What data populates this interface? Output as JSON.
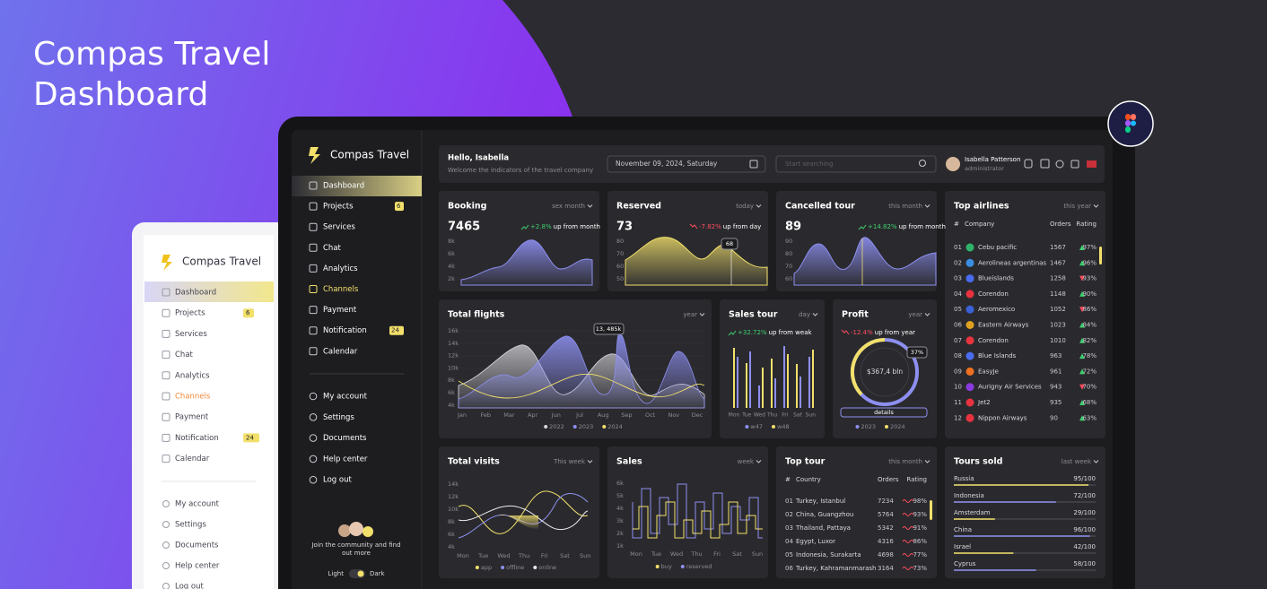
{
  "hero": {
    "title_lines": [
      "Compas Travel",
      "Dashboard"
    ]
  },
  "sidebar": {
    "brand": "Compas Travel",
    "menu": [
      {
        "label": "Dashboard",
        "active": true
      },
      {
        "label": "Projects",
        "badge": "6"
      },
      {
        "label": "Services"
      },
      {
        "label": "Chat"
      },
      {
        "label": "Analytics"
      },
      {
        "label": "Channels",
        "hovered": true
      },
      {
        "label": "Payment"
      },
      {
        "label": "Notification",
        "badge": "24"
      },
      {
        "label": "Calendar"
      }
    ],
    "account": [
      "My account",
      "Settings",
      "Documents",
      "Help center",
      "Log out"
    ],
    "community": "Join the community and find out more",
    "theme_light": "Light",
    "theme_dark": "Dark"
  },
  "header": {
    "greeting": "Hello, Isabella",
    "subtitle": "Welcome the indicators of the travel company",
    "date": "November 09, 2024, Saturday",
    "search_placeholder": "Start searching",
    "user_name": "Isabella Patterson",
    "user_role": "administrator"
  },
  "booking": {
    "title": "Booking",
    "period": "sex month",
    "value": "7465",
    "change": "+2.8%",
    "change_text": "up from month",
    "trend": "up",
    "yticks": [
      "8k",
      "6k",
      "4k",
      "2k"
    ]
  },
  "reserved": {
    "title": "Reserved",
    "period": "today",
    "value": "73",
    "change": "-7.82%",
    "change_text": "up from day",
    "trend": "down",
    "yticks": [
      "80",
      "70",
      "60",
      "50"
    ],
    "tooltip": "68"
  },
  "cancelled": {
    "title": "Cancelled tour",
    "period": "this month",
    "value": "89",
    "change": "+14.82%",
    "change_text": "up from month",
    "trend": "up",
    "yticks": [
      "90",
      "80",
      "70",
      "60"
    ]
  },
  "top_airlines": {
    "title": "Top airlines",
    "period": "this year",
    "headers": [
      "#",
      "Company",
      "Orders",
      "Rating"
    ],
    "rows": [
      {
        "rank": "01",
        "name": "Cebu pacific",
        "orders": "1567",
        "rating": "97%",
        "trend": "up",
        "color": "#2fb36b"
      },
      {
        "rank": "02",
        "name": "Aerolineas argentinas",
        "orders": "1467",
        "rating": "96%",
        "trend": "up",
        "color": "#3a8fe0"
      },
      {
        "rank": "03",
        "name": "Blueislands",
        "orders": "1258",
        "rating": "93%",
        "trend": "down",
        "color": "#4a6cf0"
      },
      {
        "rank": "04",
        "name": "Corendon",
        "orders": "1148",
        "rating": "90%",
        "trend": "up",
        "color": "#e8333f"
      },
      {
        "rank": "05",
        "name": "Aeromexico",
        "orders": "1052",
        "rating": "86%",
        "trend": "down",
        "color": "#3b62d8"
      },
      {
        "rank": "06",
        "name": "Eastern Airways",
        "orders": "1023",
        "rating": "84%",
        "trend": "up",
        "color": "#e0a020"
      },
      {
        "rank": "07",
        "name": "Corendon",
        "orders": "1010",
        "rating": "82%",
        "trend": "up",
        "color": "#e8333f"
      },
      {
        "rank": "08",
        "name": "Blue Islands",
        "orders": "963",
        "rating": "78%",
        "trend": "up",
        "color": "#4a6cf0"
      },
      {
        "rank": "09",
        "name": "EasyJe",
        "orders": "961",
        "rating": "72%",
        "trend": "up",
        "color": "#f07020"
      },
      {
        "rank": "10",
        "name": "Aurigny Air Services",
        "orders": "943",
        "rating": "70%",
        "trend": "down",
        "color": "#8a3ae0"
      },
      {
        "rank": "11",
        "name": "Jet2",
        "orders": "935",
        "rating": "68%",
        "trend": "up",
        "color": "#e8333f"
      },
      {
        "rank": "12",
        "name": "Nippon Airways",
        "orders": "90",
        "rating": "63%",
        "trend": "up",
        "color": "#e8333f"
      }
    ]
  },
  "total_flights": {
    "title": "Total flights",
    "period": "year",
    "tooltip": "13, 485k",
    "yticks": [
      "16k",
      "14k",
      "12k",
      "10k",
      "8k",
      "6k",
      "4k"
    ],
    "months": [
      "Jan",
      "Feb",
      "Mar",
      "Apr",
      "Jun",
      "Jul",
      "Aug",
      "Sep",
      "Oct",
      "Nov",
      "Dec"
    ],
    "legend": [
      {
        "name": "2022",
        "color": "#d8d8de"
      },
      {
        "name": "2023",
        "color": "#8d8ff0"
      },
      {
        "name": "2024",
        "color": "#f2e06b"
      }
    ]
  },
  "sales_tour": {
    "title": "Sales tour",
    "period": "day",
    "change": "+32.72%",
    "change_text": "up from weak",
    "trend": "up",
    "days": [
      "Mon",
      "Tue",
      "Wed",
      "Thu",
      "Fri",
      "Sat",
      "Sun"
    ],
    "legend": [
      {
        "name": "w47",
        "color": "#8d8ff0"
      },
      {
        "name": "w48",
        "color": "#f2e06b"
      }
    ]
  },
  "profit": {
    "title": "Profit",
    "period": "year",
    "change": "-12.4%",
    "change_text": "up from year",
    "trend": "down",
    "center": "$367,4 bln",
    "badge": "37%",
    "button": "details",
    "legend": [
      {
        "name": "2023",
        "color": "#8d8ff0"
      },
      {
        "name": "2024",
        "color": "#f2e06b"
      }
    ]
  },
  "total_visits": {
    "title": "Total visits",
    "period": "This week",
    "yticks": [
      "14k",
      "12k",
      "10k",
      "8k",
      "6k",
      "4k"
    ],
    "days": [
      "Mon",
      "Tue",
      "Wed",
      "Thu",
      "Fri",
      "Sat",
      "Sun"
    ],
    "legend": [
      {
        "name": "app",
        "color": "#f2e06b"
      },
      {
        "name": "offline",
        "color": "#8d8ff0"
      },
      {
        "name": "online",
        "color": "#e8e8ee"
      }
    ]
  },
  "sales": {
    "title": "Sales",
    "period": "week",
    "yticks": [
      "6k",
      "5k",
      "4k",
      "3k",
      "2k",
      "1k"
    ],
    "days": [
      "Mon",
      "Tue",
      "Wed",
      "Thu",
      "Fri",
      "Sat",
      "Sun"
    ],
    "legend": [
      {
        "name": "buy",
        "color": "#f2e06b"
      },
      {
        "name": "reserved",
        "color": "#8d8ff0"
      }
    ]
  },
  "top_tour": {
    "title": "Top tour",
    "period": "this month",
    "headers": [
      "#",
      "Country",
      "Orders",
      "Rating"
    ],
    "rows": [
      {
        "rank": "01",
        "name": "Turkey, Istanbul",
        "orders": "7234",
        "rating": "98%"
      },
      {
        "rank": "02",
        "name": "China, Guangzhou",
        "orders": "5764",
        "rating": "93%"
      },
      {
        "rank": "03",
        "name": "Thailand, Pattaya",
        "orders": "5342",
        "rating": "91%"
      },
      {
        "rank": "04",
        "name": "Egypt, Luxor",
        "orders": "4316",
        "rating": "86%"
      },
      {
        "rank": "05",
        "name": "Indonesia, Surakarta",
        "orders": "4698",
        "rating": "77%"
      },
      {
        "rank": "06",
        "name": "Turkey, Kahramanmarash",
        "orders": "3164",
        "rating": "73%"
      }
    ]
  },
  "tours_sold": {
    "title": "Tours sold",
    "period": "last week",
    "max": 100,
    "rows": [
      {
        "name": "Russia",
        "value": 95,
        "label": "95/100",
        "color": "#f2e06b"
      },
      {
        "name": "Indonesia",
        "value": 72,
        "label": "72/100",
        "color": "#8d8ff0"
      },
      {
        "name": "Amsterdam",
        "value": 29,
        "label": "29/100",
        "color": "#f2e06b"
      },
      {
        "name": "China",
        "value": 96,
        "label": "96/100",
        "color": "#8d8ff0"
      },
      {
        "name": "Israel",
        "value": 42,
        "label": "42/100",
        "color": "#f2e06b"
      },
      {
        "name": "Cyprus",
        "value": 58,
        "label": "58/100",
        "color": "#8d8ff0"
      }
    ]
  }
}
